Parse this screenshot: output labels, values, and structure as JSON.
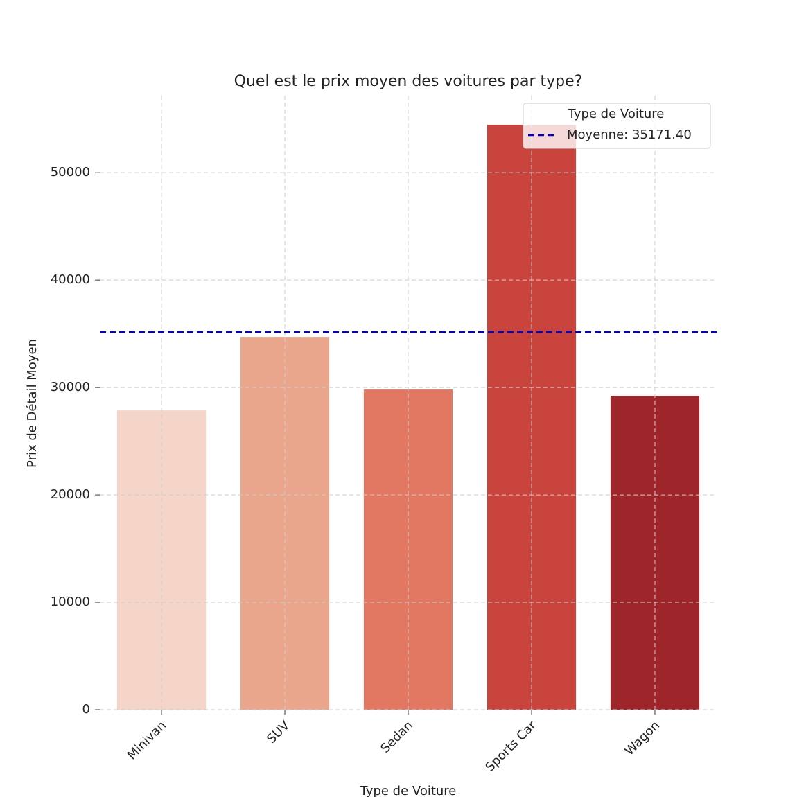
{
  "chart_data": {
    "type": "bar",
    "title": "Quel est le prix moyen des voitures par type?",
    "x_label": "Type de Voiture",
    "y_label": "Prix de Détail Moyen",
    "categories": [
      "Minivan",
      "SUV",
      "Sedan",
      "Sports Car",
      "Wagon"
    ],
    "values": [
      27870,
      34710,
      29810,
      54450,
      29230
    ],
    "colors": [
      "#f4d5c8",
      "#eaa68d",
      "#e37862",
      "#c9443c",
      "#9e262a"
    ],
    "ylim": [
      0,
      57175
    ],
    "yticks": [
      0,
      10000,
      20000,
      30000,
      40000,
      50000
    ],
    "grid": true,
    "legend_title": "Type de Voiture",
    "legend_position": "upper right",
    "mean_line": {
      "value": 35171.4,
      "label": "Moyenne: 35171.40",
      "color": "#0000cc"
    }
  }
}
